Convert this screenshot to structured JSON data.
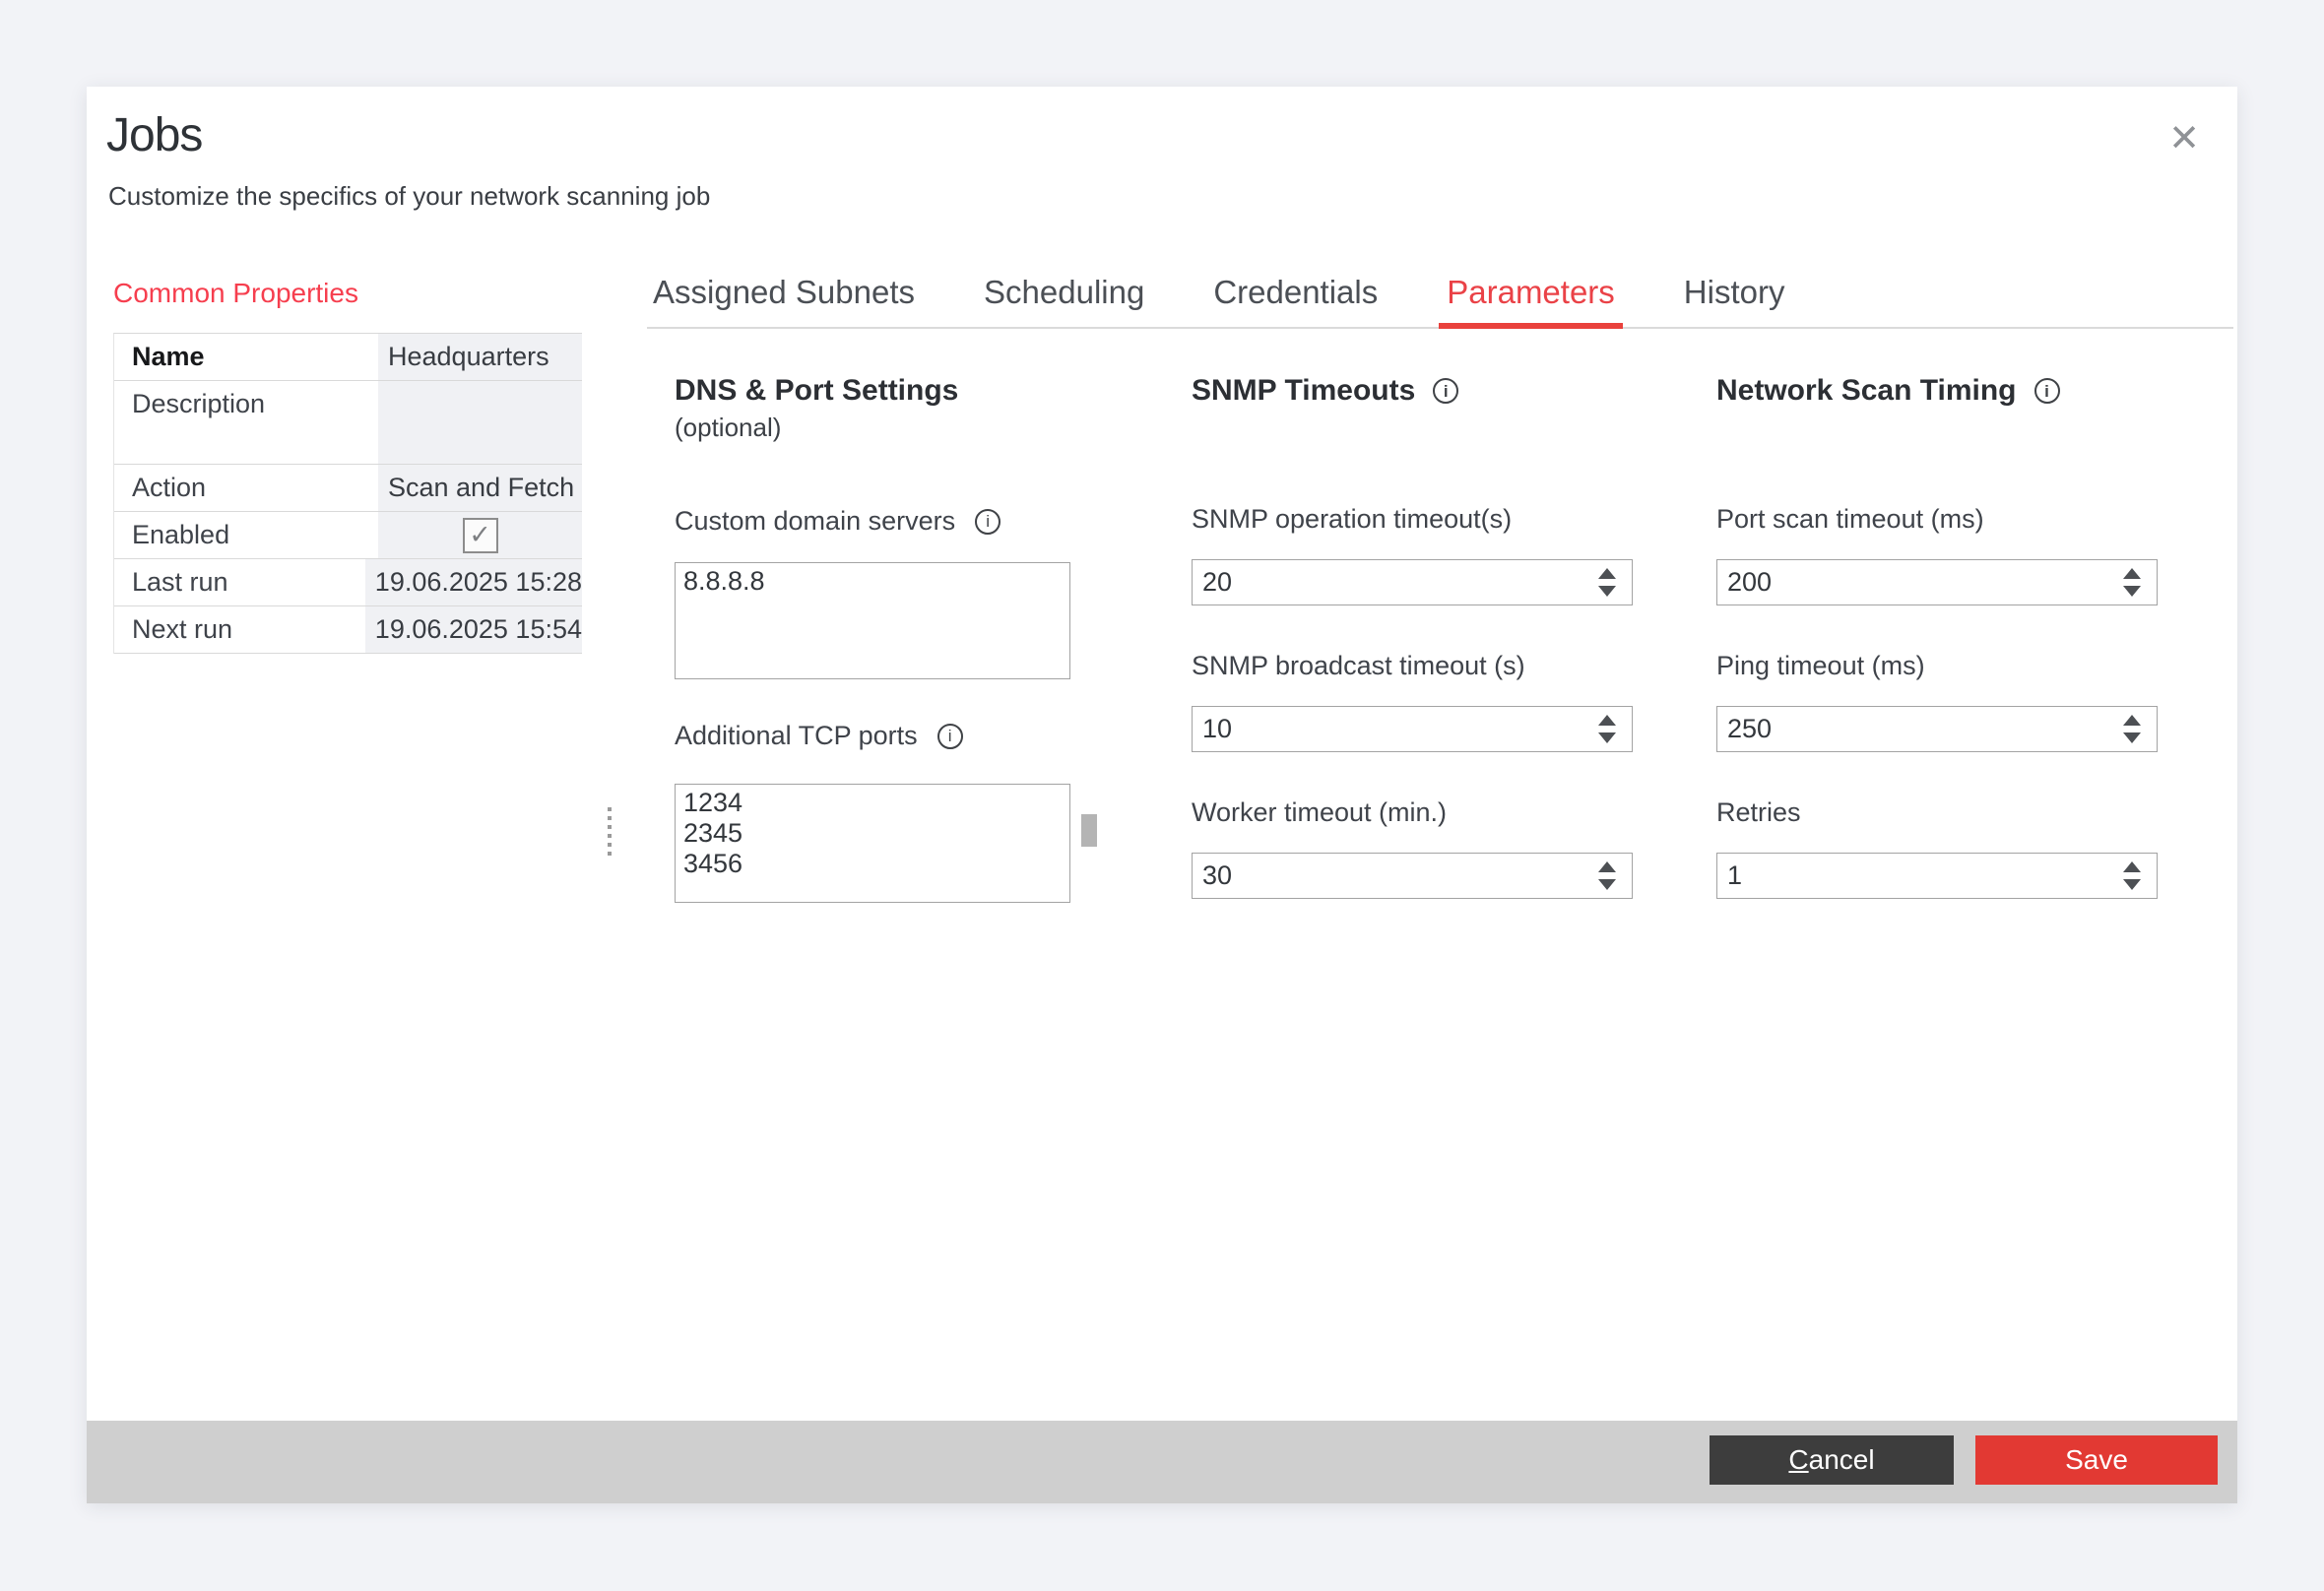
{
  "window": {
    "title": "Jobs",
    "subtitle": "Customize the specifics of your network scanning job"
  },
  "icons": {
    "close": "✕",
    "check": "✓",
    "info": "i"
  },
  "colors": {
    "accent_red_tab": "#ea4247",
    "heading_red": "#f63e4e",
    "save_red": "#e23933",
    "cancel_gray": "#3d3d3d",
    "footer_gray": "#cfcfcf",
    "value_cell_bg": "#f0f1f4"
  },
  "properties_panel": {
    "heading": "Common Properties",
    "rows": [
      {
        "label": "Name",
        "value": "Headquarters"
      },
      {
        "label": "Description",
        "value": ""
      },
      {
        "label": "Action",
        "value": "Scan and Fetch"
      },
      {
        "label": "Enabled",
        "checked": true
      },
      {
        "label": "Last run",
        "value": "19.06.2025 15:28"
      },
      {
        "label": "Next run",
        "value": "19.06.2025 15:54"
      }
    ]
  },
  "tabs": {
    "items": [
      {
        "label": "Assigned Subnets",
        "active": false
      },
      {
        "label": "Scheduling",
        "active": false
      },
      {
        "label": "Credentials",
        "active": false
      },
      {
        "label": "Parameters",
        "active": true
      },
      {
        "label": "History",
        "active": false
      }
    ]
  },
  "parameters": {
    "sections": [
      {
        "title": "DNS & Port Settings",
        "subtitle": "(optional)",
        "fields": [
          {
            "label": "Custom domain servers",
            "value": "8.8.8.8"
          },
          {
            "label": "Additional TCP ports",
            "value": "1234\n2345\n3456"
          }
        ]
      },
      {
        "title": "SNMP Timeouts",
        "fields": [
          {
            "label": "SNMP operation timeout(s)",
            "value": "20"
          },
          {
            "label": "SNMP broadcast timeout (s)",
            "value": "10"
          },
          {
            "label": "Worker timeout (min.)",
            "value": "30"
          }
        ]
      },
      {
        "title": "Network Scan Timing",
        "fields": [
          {
            "label": "Port scan timeout (ms)",
            "value": "200"
          },
          {
            "label": "Ping timeout (ms)",
            "value": "250"
          },
          {
            "label": "Retries",
            "value": "1"
          }
        ]
      }
    ]
  },
  "footer": {
    "cancel_label": "Cancel",
    "save_label": "Save"
  }
}
